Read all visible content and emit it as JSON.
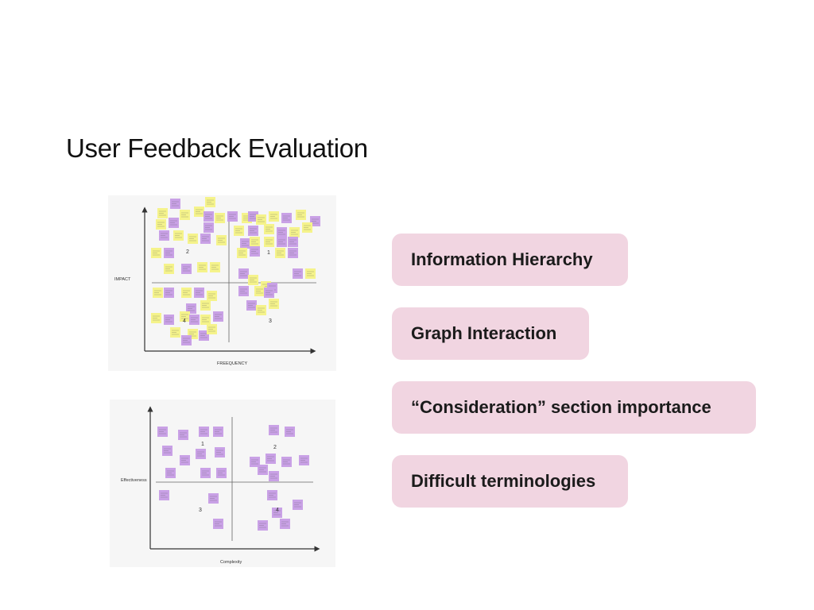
{
  "slide": {
    "title": "User Feedback Evaluation"
  },
  "matrix_top": {
    "x_axis_label": "FREEQUENCY",
    "y_axis_label": "IMPACT",
    "quadrant_labels": [
      "1",
      "2",
      "3",
      "4"
    ],
    "note_colors": {
      "yellow": "#f5f38b",
      "purple": "#c9a1e6"
    }
  },
  "matrix_bottom": {
    "x_axis_label": "Complexity",
    "y_axis_label": "Effectiveness",
    "quadrant_labels": [
      "1",
      "2",
      "3",
      "4"
    ],
    "note_colors": {
      "purple": "#c9a1e6"
    }
  },
  "themes": [
    {
      "label": "Information Hierarchy"
    },
    {
      "label": "Graph Interaction"
    },
    {
      "label": "“Consideration” section importance"
    },
    {
      "label": "Difficult terminologies"
    }
  ],
  "colors": {
    "pill_bg": "#f1d5e1"
  }
}
